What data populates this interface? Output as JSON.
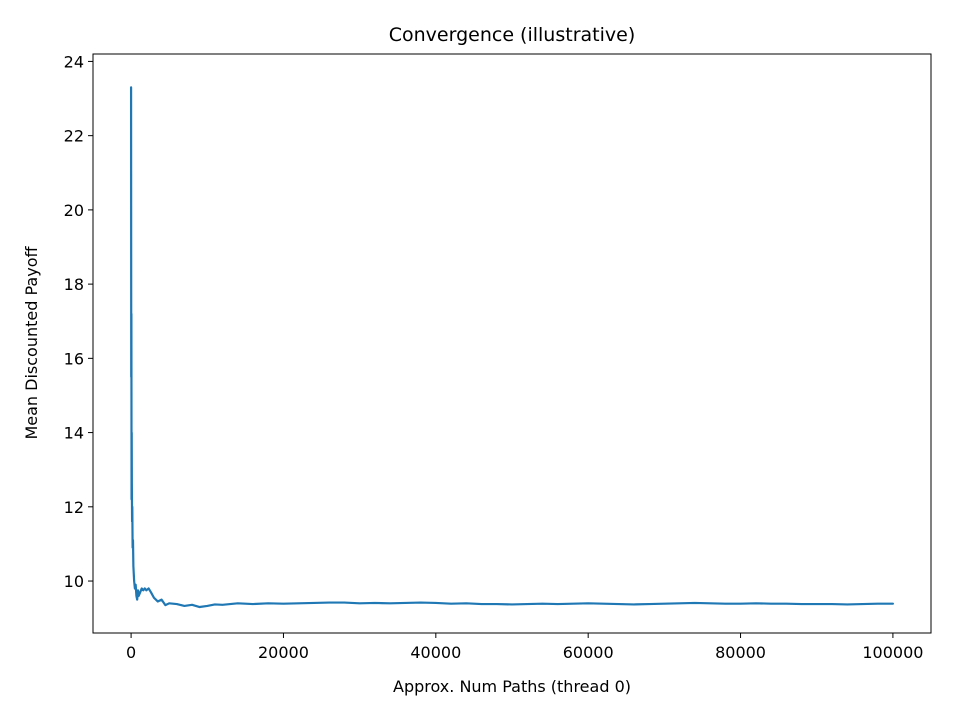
{
  "chart_data": {
    "type": "line",
    "title": "Convergence (illustrative)",
    "xlabel": "Approx. Num Paths (thread 0)",
    "ylabel": "Mean Discounted Payoff",
    "xlim": [
      -5000,
      105000
    ],
    "ylim": [
      8.6,
      24.2
    ],
    "xticks": [
      0,
      20000,
      40000,
      60000,
      80000,
      100000
    ],
    "yticks": [
      10,
      12,
      14,
      16,
      18,
      20,
      22,
      24
    ],
    "grid": false,
    "legend": "none",
    "series": [
      {
        "color": "#1f77b4",
        "x": [
          0,
          20,
          40,
          60,
          80,
          100,
          130,
          160,
          200,
          250,
          300,
          350,
          400,
          500,
          600,
          700,
          800,
          900,
          1000,
          1200,
          1400,
          1600,
          1800,
          2000,
          2300,
          2600,
          3000,
          3500,
          4000,
          4500,
          5000,
          6000,
          7000,
          8000,
          9000,
          10000,
          11000,
          12000,
          14000,
          16000,
          18000,
          20000,
          22000,
          24000,
          26000,
          28000,
          30000,
          32000,
          34000,
          36000,
          38000,
          40000,
          42000,
          44000,
          46000,
          48000,
          50000,
          52000,
          54000,
          56000,
          58000,
          60000,
          62000,
          64000,
          66000,
          68000,
          70000,
          72000,
          74000,
          76000,
          78000,
          80000,
          82000,
          84000,
          86000,
          88000,
          90000,
          92000,
          94000,
          96000,
          98000,
          100000
        ],
        "y": [
          23.3,
          15.5,
          17.2,
          12.2,
          14.0,
          12.6,
          11.6,
          12.0,
          10.9,
          11.1,
          10.4,
          10.2,
          10.0,
          9.8,
          9.9,
          9.6,
          9.5,
          9.75,
          9.6,
          9.7,
          9.8,
          9.75,
          9.8,
          9.75,
          9.8,
          9.7,
          9.55,
          9.45,
          9.5,
          9.35,
          9.4,
          9.38,
          9.33,
          9.36,
          9.3,
          9.33,
          9.37,
          9.36,
          9.4,
          9.38,
          9.4,
          9.39,
          9.4,
          9.41,
          9.42,
          9.42,
          9.4,
          9.41,
          9.4,
          9.41,
          9.42,
          9.41,
          9.39,
          9.4,
          9.38,
          9.38,
          9.37,
          9.38,
          9.39,
          9.38,
          9.39,
          9.4,
          9.39,
          9.38,
          9.37,
          9.38,
          9.39,
          9.4,
          9.41,
          9.4,
          9.39,
          9.39,
          9.4,
          9.39,
          9.39,
          9.38,
          9.38,
          9.38,
          9.37,
          9.38,
          9.39,
          9.39
        ]
      }
    ]
  }
}
